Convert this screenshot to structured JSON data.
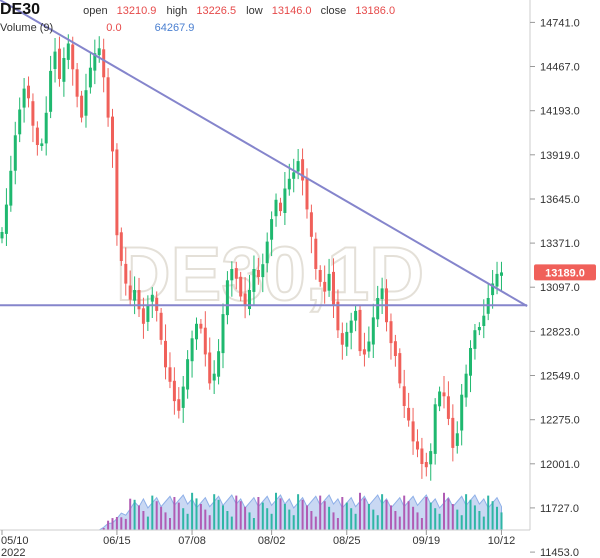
{
  "header": {
    "symbol": "DE30",
    "open_label": "open",
    "open_value": "13210.9",
    "high_label": "high",
    "high_value": "13226.5",
    "low_label": "low",
    "low_value": "13146.0",
    "close_label": "close",
    "close_value": "13186.0",
    "volume_label": "Volume (9)",
    "volume_value": "0.0",
    "volume_ma_value": "64267.9"
  },
  "watermark": "DE30,1D",
  "colors": {
    "up": "#1fb86f",
    "down": "#f0605a",
    "trendline": "#8585cc",
    "price_badge": "#f0605a",
    "volume_area": "#c9d8f3",
    "volume_up": "#2fb6a5",
    "volume_down": "#b05cb4"
  },
  "chart_data": {
    "type": "candlestick",
    "symbol": "DE30",
    "timeframe": "1D",
    "ylim": [
      11590,
      14880
    ],
    "y_ticks": [
      "14741.0",
      "14467.0",
      "14193.0",
      "13919.0",
      "13645.0",
      "13371.0",
      "13097.0",
      "12823.0",
      "12549.0",
      "12275.0",
      "12001.0",
      "11727.0",
      "11453.0"
    ],
    "y_tick_values": [
      14741.0,
      14467.0,
      14193.0,
      13919.0,
      13645.0,
      13371.0,
      13097.0,
      12823.0,
      12549.0,
      12275.0,
      12001.0,
      11727.0,
      11453.0
    ],
    "x_ticks": [
      {
        "label": "05/10",
        "index": 0
      },
      {
        "label": "06/15",
        "index": 26
      },
      {
        "label": "07/08",
        "index": 43
      },
      {
        "label": "08/02",
        "index": 61
      },
      {
        "label": "08/25",
        "index": 78
      },
      {
        "label": "09/19",
        "index": 96
      },
      {
        "label": "10/12",
        "index": 113
      }
    ],
    "x_year_label": "2022",
    "last_price": "13189.0",
    "last_price_value": 13189,
    "closes": [
      13440,
      13610,
      13820,
      14040,
      14200,
      14330,
      14270,
      14100,
      13980,
      13990,
      14180,
      14440,
      14560,
      14390,
      14520,
      14610,
      14450,
      14280,
      14150,
      14320,
      14460,
      14550,
      14580,
      14400,
      14150,
      13940,
      13420,
      13260,
      13120,
      13020,
      13080,
      12960,
      12870,
      12990,
      13050,
      12950,
      12770,
      12600,
      12510,
      12390,
      12330,
      12480,
      12650,
      12780,
      12870,
      12840,
      12680,
      12500,
      12560,
      12700,
      12930,
      13140,
      13210,
      13150,
      13040,
      12980,
      13080,
      13210,
      13160,
      13240,
      13380,
      13520,
      13640,
      13570,
      13710,
      13770,
      13810,
      13880,
      13760,
      13580,
      13410,
      13210,
      13130,
      13070,
      13180,
      12990,
      12830,
      12740,
      12820,
      12890,
      12950,
      12700,
      12680,
      12760,
      12910,
      13030,
      13090,
      12880,
      12750,
      12670,
      12500,
      12360,
      12270,
      12140,
      12090,
      12000,
      11980,
      12080,
      12370,
      12450,
      12420,
      12280,
      12100,
      12190,
      12430,
      12560,
      12720,
      12830,
      12850,
      12920,
      13030,
      13120,
      13180,
      13189
    ],
    "trendlines": [
      {
        "from": {
          "index": 0,
          "price": 14880
        },
        "to": {
          "index": 117,
          "price": 12980
        }
      },
      {
        "from": {
          "index": 0,
          "price": 12985
        },
        "to": {
          "index": 117,
          "price": 12985
        }
      }
    ]
  }
}
